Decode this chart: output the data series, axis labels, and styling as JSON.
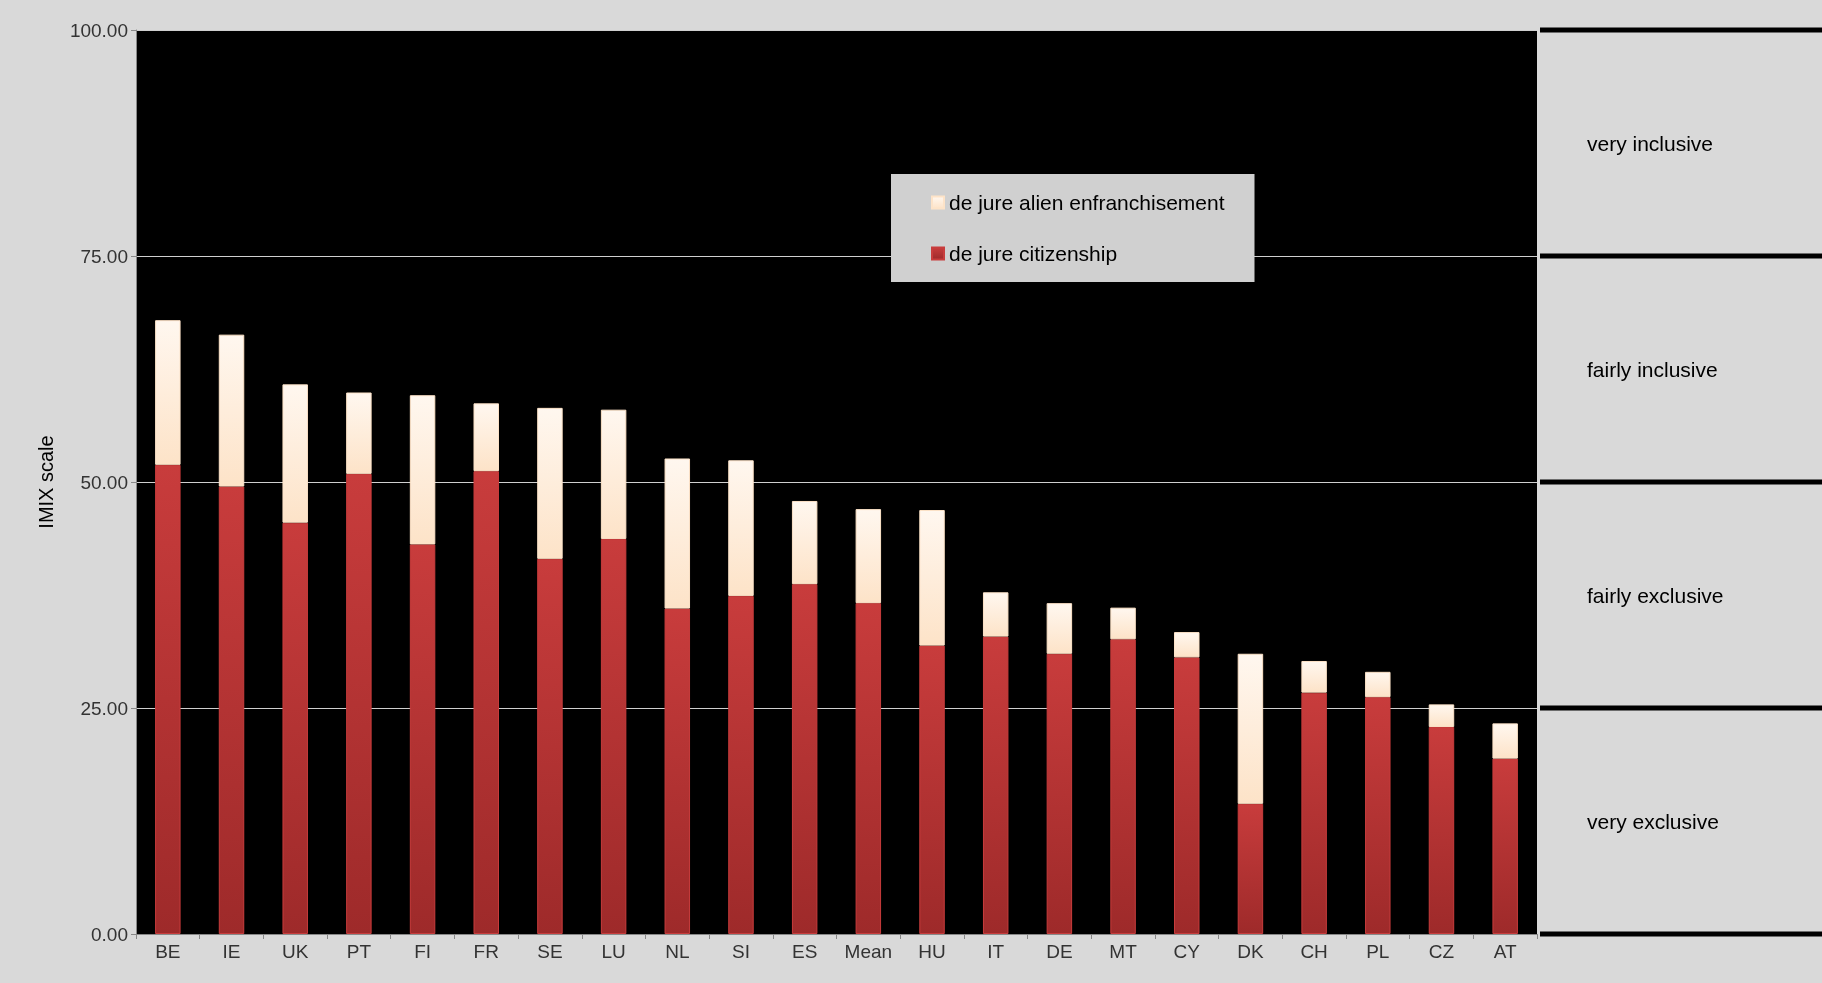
{
  "chart_data": {
    "type": "bar",
    "stacked": true,
    "ylabel": "IMIX scale",
    "categories": [
      "BE",
      "IE",
      "UK",
      "PT",
      "FI",
      "FR",
      "SE",
      "LU",
      "NL",
      "SI",
      "ES",
      "Mean",
      "HU",
      "IT",
      "DE",
      "MT",
      "CY",
      "DK",
      "CH",
      "PL",
      "CZ",
      "AT"
    ],
    "series": [
      {
        "name": "de jure citizenship",
        "color": "#c83c3c",
        "values": [
          51.9,
          49.5,
          45.5,
          50.9,
          43.1,
          51.2,
          41.5,
          43.7,
          36.0,
          37.4,
          38.7,
          36.6,
          31.9,
          32.9,
          31.0,
          32.6,
          30.6,
          14.4,
          26.7,
          26.2,
          22.9,
          19.4
        ]
      },
      {
        "name": "de jure alien enfranchisement",
        "color": "#fde3c8",
        "values": [
          16.0,
          16.8,
          15.3,
          9.0,
          16.5,
          7.5,
          16.7,
          14.3,
          16.6,
          15.0,
          9.2,
          10.4,
          15.0,
          4.9,
          5.6,
          3.5,
          2.8,
          16.6,
          3.5,
          2.8,
          2.5,
          3.9
        ]
      }
    ],
    "ylim": [
      0,
      100
    ],
    "yticks": [
      {
        "value": 0,
        "label": "0.00"
      },
      {
        "value": 25,
        "label": "25.00"
      },
      {
        "value": 50,
        "label": "50.00"
      },
      {
        "value": 75,
        "label": "75.00"
      },
      {
        "value": 100,
        "label": "100.00"
      }
    ],
    "annotations": [
      "very inclusive",
      "fairly inclusive",
      "fairly exclusive",
      "very exclusive"
    ],
    "grid": "y",
    "legend": "top"
  }
}
